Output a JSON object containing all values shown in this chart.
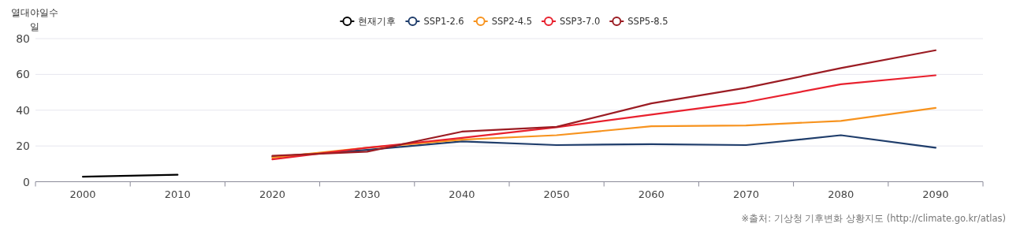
{
  "chart_data": {
    "type": "line",
    "ylabel": "열대야일수",
    "annotations": [
      "일",
      "※출처: 기상청 기후변화 상황지도 (http://climate.go.kr/atlas)"
    ],
    "categories": [
      "2000",
      "2010",
      "2020",
      "2030",
      "2040",
      "2050",
      "2060",
      "2070",
      "2080",
      "2090"
    ],
    "series": [
      {
        "name": "현재기후",
        "color": "#000000",
        "values": [
          2.8,
          3.9,
          null,
          null,
          null,
          null,
          null,
          null,
          null,
          null
        ]
      },
      {
        "name": "SSP1-2.6",
        "color": "#1f3d6b",
        "values": [
          null,
          null,
          14,
          17.8,
          22.5,
          20.5,
          21,
          20.5,
          26,
          19
        ]
      },
      {
        "name": "SSP2-4.5",
        "color": "#f7931e",
        "values": [
          null,
          null,
          13.5,
          19,
          23.5,
          26,
          31,
          31.5,
          34,
          41.3
        ]
      },
      {
        "name": "SSP3-7.0",
        "color": "#e8212e",
        "values": [
          null,
          null,
          12.5,
          19,
          24.5,
          30.5,
          37.5,
          44.5,
          54.5,
          59.5
        ]
      },
      {
        "name": "SSP5-8.5",
        "color": "#9b1c23",
        "values": [
          null,
          null,
          14.5,
          16.8,
          28,
          30.7,
          43.8,
          52.5,
          63.5,
          73.5
        ]
      }
    ],
    "ylim": [
      0,
      80
    ],
    "yticks": [
      0,
      20,
      40,
      60,
      80
    ],
    "grid": "y",
    "legend": "top",
    "line_style": "solid"
  }
}
